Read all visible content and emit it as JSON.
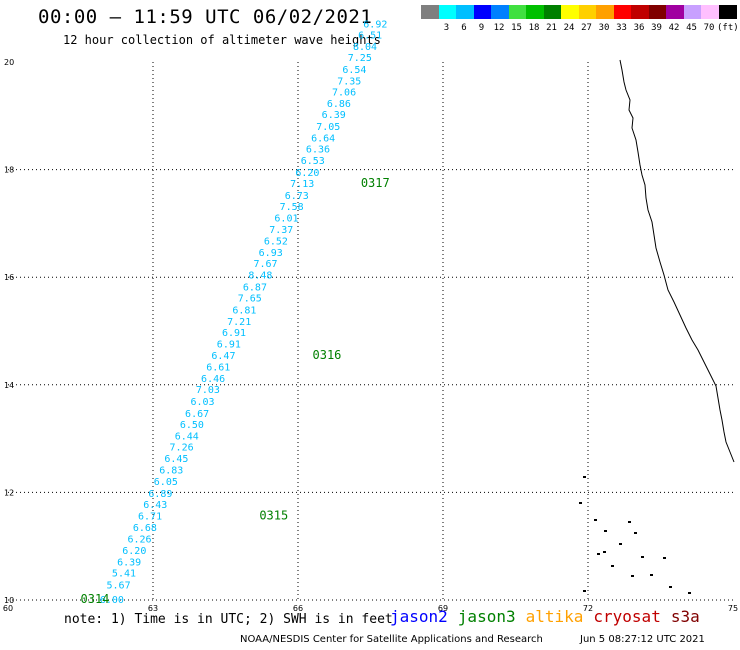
{
  "header": {
    "title": "00:00 – 11:59 UTC 06/02/2021",
    "subtitle": "12 hour collection of altimeter wave heights"
  },
  "colorbar": {
    "colors": [
      "#7f7f7f",
      "#00ffff",
      "#00bfff",
      "#0000ff",
      "#0080ff",
      "#40e040",
      "#00c000",
      "#008000",
      "#ffff00",
      "#ffd000",
      "#ffa000",
      "#ff0000",
      "#c00000",
      "#800000",
      "#a000a0",
      "#c8a0ff",
      "#ffc0ff",
      "#000000"
    ],
    "labels": [
      "3",
      "6",
      "9",
      "12",
      "15",
      "18",
      "21",
      "24",
      "27",
      "30",
      "33",
      "36",
      "39",
      "42",
      "45",
      "70"
    ],
    "unit": "(ft)"
  },
  "note": "note: 1) Time is in UTC; 2) SWH is in feet",
  "legend": [
    {
      "label": "jason2",
      "color": "#0000ff"
    },
    {
      "label": "jason3",
      "color": "#008000"
    },
    {
      "label": "altika",
      "color": "#ffa000"
    },
    {
      "label": "cryosat",
      "color": "#c00000"
    },
    {
      "label": "s3a",
      "color": "#800000"
    }
  ],
  "footer": {
    "credit": "NOAA/NESDIS Center for Satellite Applications and Research",
    "timestamp": "Jun  5 08:27:12 UTC 2021"
  },
  "chart_data": {
    "type": "scatter",
    "xlim": [
      60,
      75
    ],
    "ylim": [
      10,
      20
    ],
    "x_ticks": [
      "60",
      "63",
      "66",
      "69",
      "72",
      "75"
    ],
    "y_ticks": [
      "10",
      "12",
      "14",
      "16",
      "18",
      "20"
    ],
    "grid": true,
    "label_color": "#00bfff",
    "time_label_color": "#008000",
    "track": [
      {
        "lat": 10.02,
        "swh": "6.00"
      },
      {
        "lat": 10.29,
        "swh": "5.67"
      },
      {
        "lat": 10.51,
        "swh": "5.41"
      },
      {
        "lat": 10.72,
        "swh": "6.39"
      },
      {
        "lat": 10.93,
        "swh": "6.20"
      },
      {
        "lat": 11.14,
        "swh": "6.26"
      },
      {
        "lat": 11.36,
        "swh": "6.68"
      },
      {
        "lat": 11.57,
        "swh": "6.71"
      },
      {
        "lat": 11.78,
        "swh": "6.43"
      },
      {
        "lat": 11.99,
        "swh": "6.89"
      },
      {
        "lat": 12.21,
        "swh": "6.05"
      },
      {
        "lat": 12.43,
        "swh": "6.83"
      },
      {
        "lat": 12.64,
        "swh": "6.45"
      },
      {
        "lat": 12.85,
        "swh": "7.26"
      },
      {
        "lat": 13.06,
        "swh": "6.44"
      },
      {
        "lat": 13.27,
        "swh": "6.50"
      },
      {
        "lat": 13.48,
        "swh": "6.67"
      },
      {
        "lat": 13.7,
        "swh": "6.03"
      },
      {
        "lat": 13.92,
        "swh": "7.03"
      },
      {
        "lat": 14.13,
        "swh": "6.46"
      },
      {
        "lat": 14.34,
        "swh": "6.61"
      },
      {
        "lat": 14.55,
        "swh": "6.47"
      },
      {
        "lat": 14.77,
        "swh": "6.91"
      },
      {
        "lat": 14.98,
        "swh": "6.91"
      },
      {
        "lat": 15.19,
        "swh": "7.21"
      },
      {
        "lat": 15.4,
        "swh": "6.81"
      },
      {
        "lat": 15.62,
        "swh": "7.65"
      },
      {
        "lat": 15.83,
        "swh": "6.87"
      },
      {
        "lat": 16.05,
        "swh": "8.48"
      },
      {
        "lat": 16.26,
        "swh": "7.67"
      },
      {
        "lat": 16.47,
        "swh": "6.93"
      },
      {
        "lat": 16.68,
        "swh": "6.52"
      },
      {
        "lat": 16.9,
        "swh": "7.37"
      },
      {
        "lat": 17.11,
        "swh": "6.01"
      },
      {
        "lat": 17.32,
        "swh": "7.58"
      },
      {
        "lat": 17.53,
        "swh": "6.73"
      },
      {
        "lat": 17.75,
        "swh": "7.13"
      },
      {
        "lat": 17.96,
        "swh": "6.20"
      },
      {
        "lat": 18.18,
        "swh": "6.53"
      },
      {
        "lat": 18.39,
        "swh": "6.36"
      },
      {
        "lat": 18.6,
        "swh": "6.64"
      },
      {
        "lat": 18.81,
        "swh": "7.05"
      },
      {
        "lat": 19.03,
        "swh": "6.39"
      },
      {
        "lat": 19.24,
        "swh": "6.86"
      },
      {
        "lat": 19.45,
        "swh": "7.06"
      },
      {
        "lat": 19.66,
        "swh": "7.35"
      },
      {
        "lat": 19.87,
        "swh": "6.54"
      },
      {
        "lat": 20.09,
        "swh": "7.25"
      },
      {
        "lat": 20.3,
        "swh": "8.04"
      },
      {
        "lat": 20.51,
        "swh": "6.51"
      },
      {
        "lat": 20.72,
        "swh": "6.92"
      }
    ],
    "time_labels": [
      {
        "label": "0314",
        "lon": 61.5,
        "lat": 10.02
      },
      {
        "label": "0315",
        "lon": 65.2,
        "lat": 11.57
      },
      {
        "label": "0316",
        "lon": 66.3,
        "lat": 14.55
      },
      {
        "label": "0317",
        "lon": 67.3,
        "lat": 17.75
      }
    ]
  }
}
